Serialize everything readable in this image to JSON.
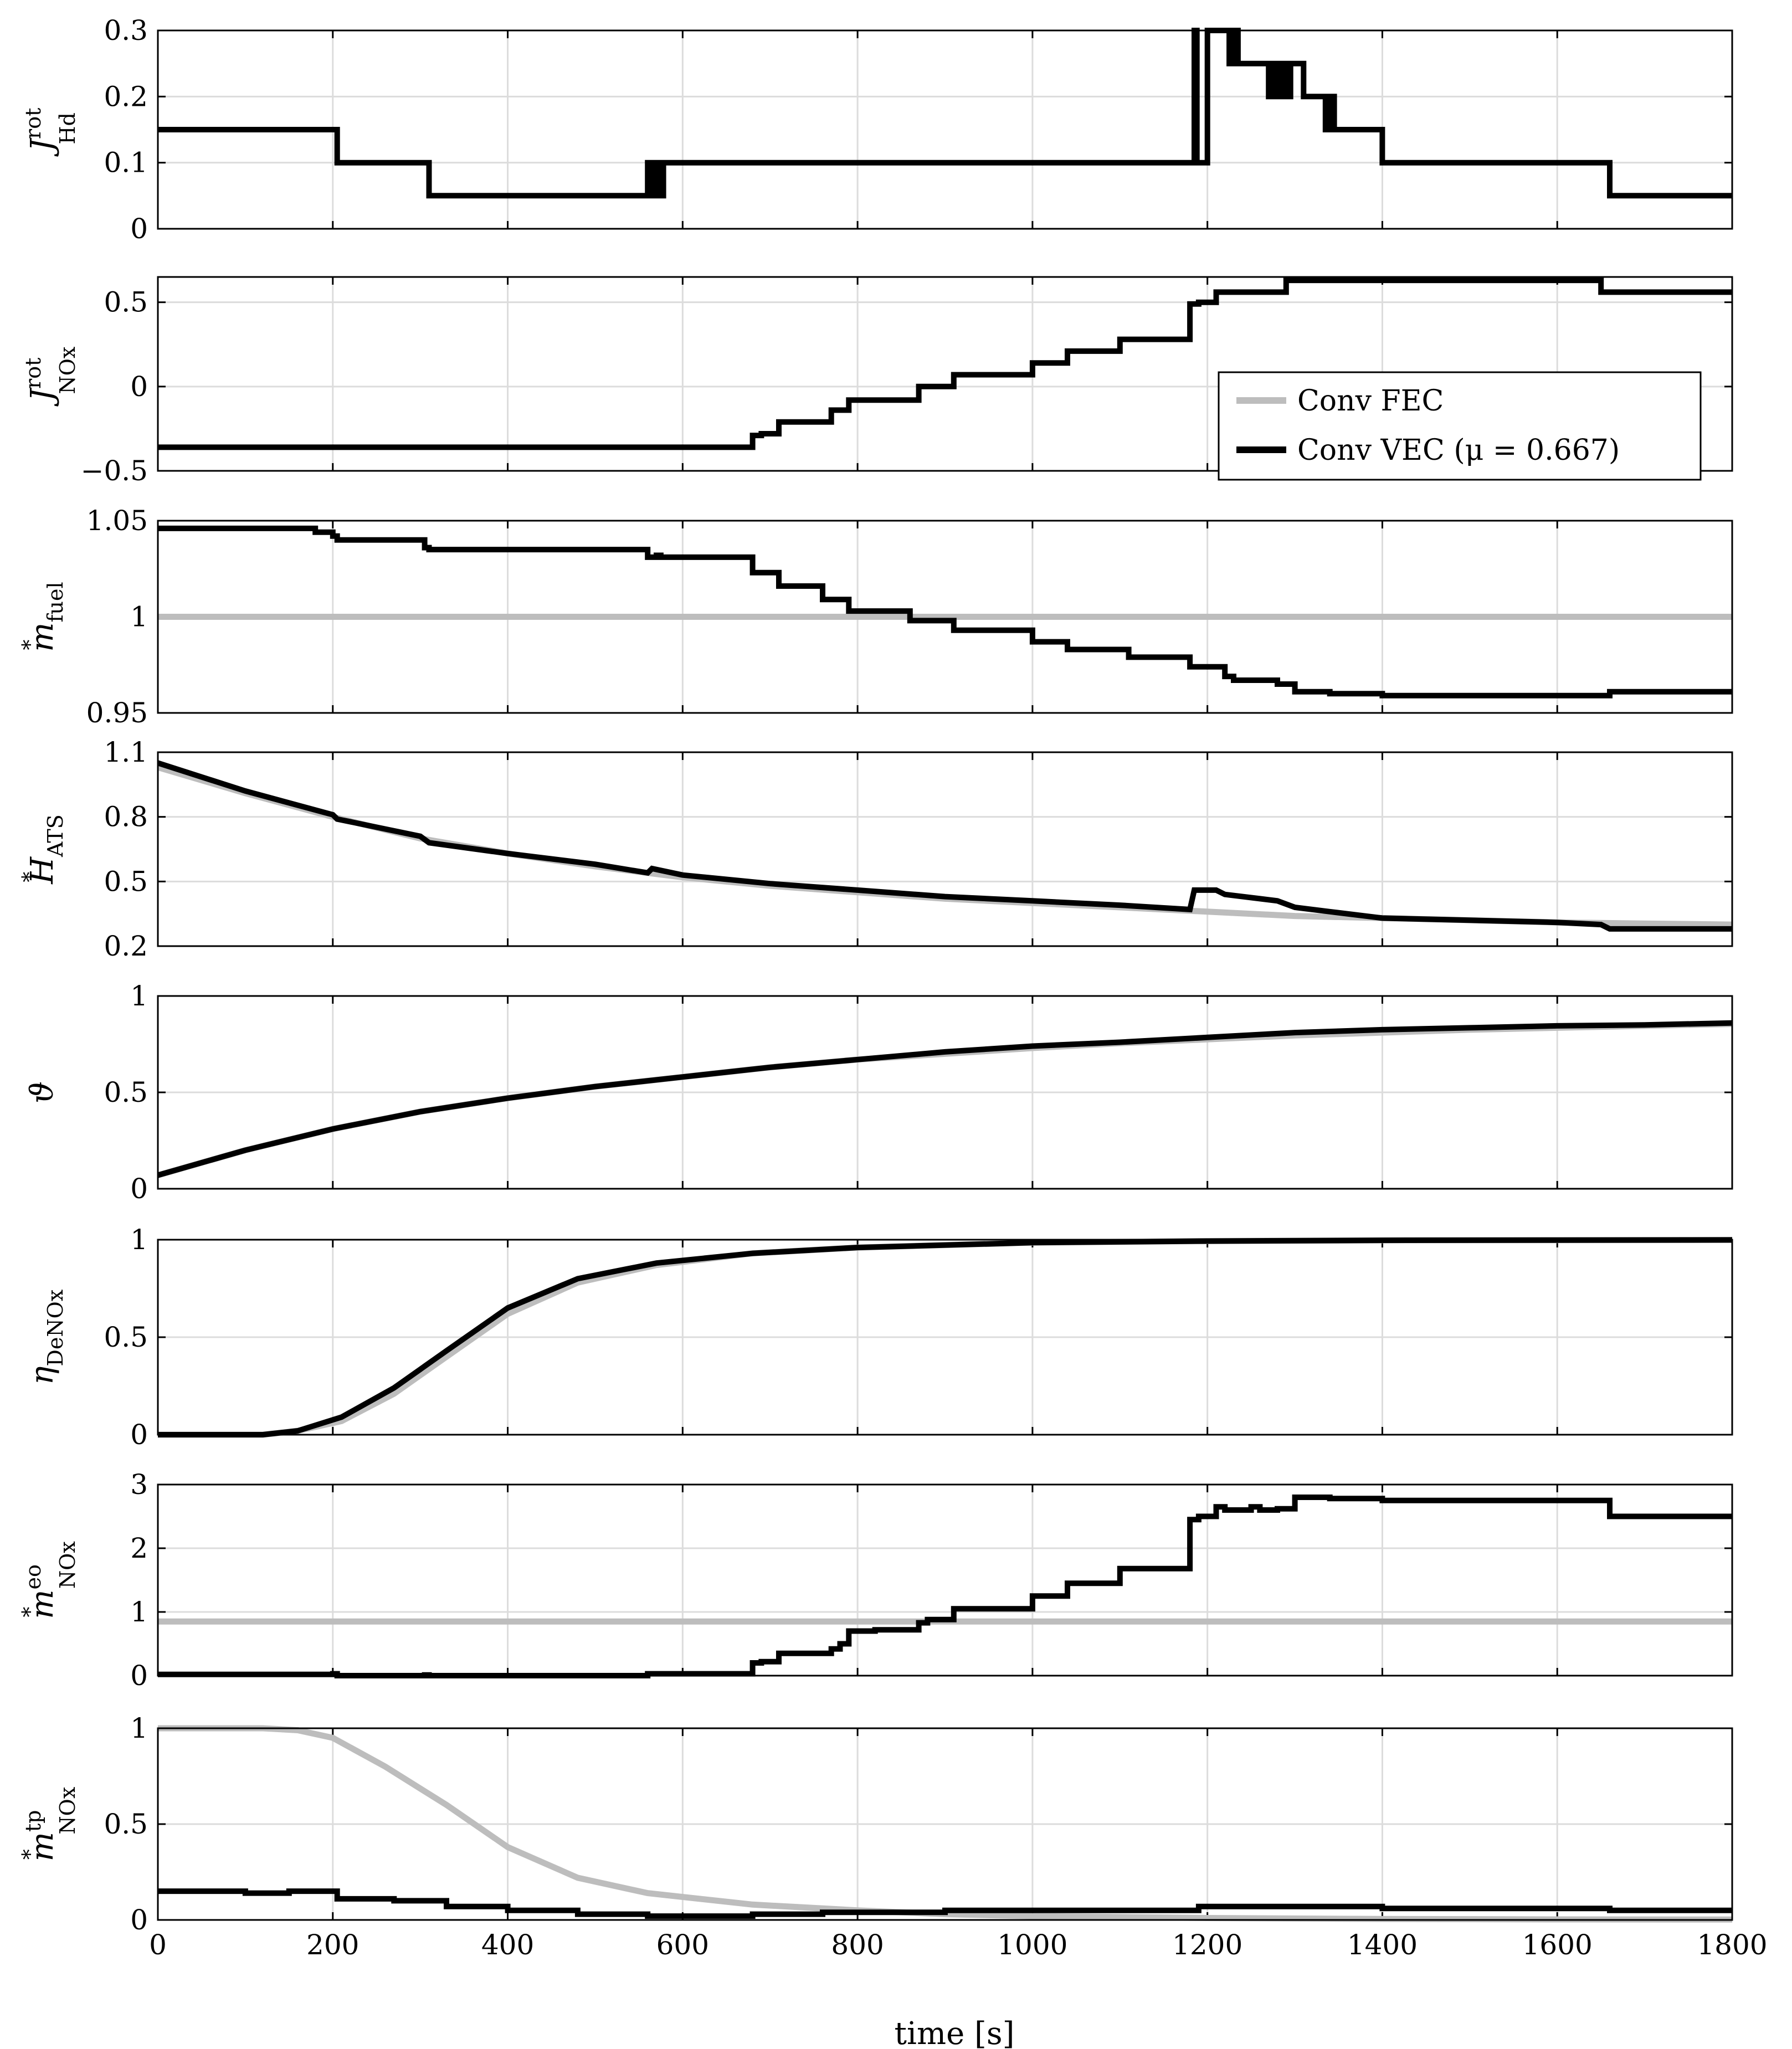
{
  "chart_data": {
    "type": "line",
    "xlabel": "time [s]",
    "xlim": [
      0,
      1800
    ],
    "xticks": [
      "0",
      "200",
      "400",
      "600",
      "800",
      "1000",
      "1200",
      "1400",
      "1600",
      "1800"
    ],
    "grid": true,
    "legend": {
      "placement": "inside-right of panel 6",
      "entries": [
        {
          "label": "Conv FEC",
          "color": "#bdbdbd"
        },
        {
          "label": "Conv VEC (μ = 0.667)",
          "color": "#000000"
        }
      ]
    },
    "panels": [
      {
        "ylabel": {
          "pre": "",
          "base": "J",
          "sup": "rot",
          "sub": "Hd"
        },
        "ylim": [
          0,
          0.3
        ],
        "yticks": [
          {
            "v": 0,
            "t": "0"
          },
          {
            "v": 0.1,
            "t": "0.1"
          },
          {
            "v": 0.2,
            "t": "0.2"
          },
          {
            "v": 0.3,
            "t": "0.3"
          }
        ],
        "series": [
          {
            "color": "#000000",
            "step": true,
            "x": [
              0,
              200,
              205,
              305,
              310,
              555,
              560,
              562,
              565,
              568,
              572,
              575,
              578,
              1180,
              1185,
              1188,
              1200,
              1215,
              1220,
              1225,
              1230,
              1235,
              1250,
              1270,
              1275,
              1280,
              1285,
              1290,
              1295,
              1300,
              1310,
              1320,
              1335,
              1340,
              1345,
              1390,
              1400,
              1650,
              1660,
              1800
            ],
            "y": [
              0.15,
              0.15,
              0.1,
              0.1,
              0.05,
              0.05,
              0.1,
              0.05,
              0.1,
              0.05,
              0.1,
              0.05,
              0.1,
              0.1,
              0.3,
              0.1,
              0.3,
              0.3,
              0.3,
              0.25,
              0.3,
              0.25,
              0.25,
              0.2,
              0.25,
              0.2,
              0.25,
              0.2,
              0.25,
              0.25,
              0.2,
              0.2,
              0.15,
              0.2,
              0.15,
              0.15,
              0.1,
              0.1,
              0.05,
              0.05
            ]
          }
        ]
      },
      {
        "ylabel": {
          "pre": "",
          "base": "J",
          "sup": "rot",
          "sub": "NOx"
        },
        "ylim": [
          -0.5,
          0.65
        ],
        "yticks": [
          {
            "v": -0.5,
            "t": "−0.5"
          },
          {
            "v": 0,
            "t": "0"
          },
          {
            "v": 0.5,
            "t": "0.5"
          }
        ],
        "series": [
          {
            "color": "#000000",
            "step": true,
            "x": [
              0,
              680,
              690,
              710,
              770,
              780,
              790,
              820,
              870,
              880,
              910,
              1000,
              1040,
              1100,
              1180,
              1190,
              1210,
              1290,
              1300,
              1650,
              1660,
              1800
            ],
            "y": [
              -0.36,
              -0.29,
              -0.28,
              -0.21,
              -0.14,
              -0.14,
              -0.08,
              -0.08,
              0,
              0,
              0.07,
              0.14,
              0.21,
              0.28,
              0.49,
              0.5,
              0.56,
              0.63,
              0.63,
              0.56,
              0.56,
              0.56
            ]
          }
        ]
      },
      {
        "ylabel": {
          "pre": "*",
          "base": "m",
          "sup": "",
          "sub": "fuel"
        },
        "ylim": [
          0.95,
          1.05
        ],
        "yticks": [
          {
            "v": 0.95,
            "t": "0.95"
          },
          {
            "v": 1,
            "t": "1"
          },
          {
            "v": 1.05,
            "t": "1.05"
          }
        ],
        "series": [
          {
            "color": "#bdbdbd",
            "step": false,
            "x": [
              0,
              1800
            ],
            "y": [
              1,
              1
            ]
          },
          {
            "color": "#000000",
            "step": true,
            "x": [
              0,
              120,
              180,
              200,
              205,
              305,
              310,
              560,
              570,
              575,
              680,
              710,
              760,
              790,
              860,
              910,
              1000,
              1040,
              1110,
              1180,
              1220,
              1230,
              1280,
              1300,
              1340,
              1400,
              1650,
              1660,
              1800
            ],
            "y": [
              1.046,
              1.046,
              1.044,
              1.042,
              1.04,
              1.036,
              1.035,
              1.031,
              1.032,
              1.031,
              1.023,
              1.016,
              1.009,
              1.003,
              0.998,
              0.993,
              0.987,
              0.983,
              0.979,
              0.974,
              0.969,
              0.967,
              0.965,
              0.961,
              0.96,
              0.959,
              0.959,
              0.961,
              0.961
            ]
          }
        ]
      },
      {
        "ylabel": {
          "pre": "*",
          "base": "H",
          "sup": "",
          "sub": "ATS"
        },
        "ylim": [
          0.2,
          1.1
        ],
        "yticks": [
          {
            "v": 0.2,
            "t": "0.2"
          },
          {
            "v": 0.5,
            "t": "0.5"
          },
          {
            "v": 0.8,
            "t": "0.8"
          },
          {
            "v": 1.1,
            "t": "1.1"
          }
        ],
        "series": [
          {
            "color": "#bdbdbd",
            "step": false,
            "x": [
              0,
              100,
              200,
              300,
              400,
              500,
              600,
              700,
              800,
              900,
              1000,
              1100,
              1200,
              1300,
              1400,
              1500,
              1600,
              1700,
              1800
            ],
            "y": [
              1.03,
              0.91,
              0.8,
              0.7,
              0.63,
              0.57,
              0.52,
              0.48,
              0.45,
              0.42,
              0.4,
              0.38,
              0.36,
              0.34,
              0.33,
              0.32,
              0.31,
              0.305,
              0.3
            ]
          },
          {
            "color": "#000000",
            "step": false,
            "x": [
              0,
              100,
              200,
              205,
              300,
              310,
              400,
              500,
              560,
              565,
              600,
              700,
              800,
              900,
              1000,
              1100,
              1180,
              1185,
              1210,
              1220,
              1260,
              1280,
              1300,
              1340,
              1400,
              1500,
              1600,
              1650,
              1660,
              1800
            ],
            "y": [
              1.05,
              0.92,
              0.81,
              0.79,
              0.71,
              0.68,
              0.63,
              0.58,
              0.54,
              0.56,
              0.53,
              0.49,
              0.46,
              0.43,
              0.41,
              0.39,
              0.37,
              0.46,
              0.46,
              0.44,
              0.42,
              0.41,
              0.38,
              0.36,
              0.33,
              0.32,
              0.31,
              0.3,
              0.28,
              0.28
            ]
          }
        ]
      },
      {
        "ylabel": {
          "pre": "",
          "base": "ϑ",
          "sup": "",
          "sub": ""
        },
        "ylim": [
          0,
          1
        ],
        "yticks": [
          {
            "v": 0,
            "t": "0"
          },
          {
            "v": 0.5,
            "t": "0.5"
          },
          {
            "v": 1,
            "t": "1"
          }
        ],
        "series": [
          {
            "color": "#bdbdbd",
            "step": false,
            "x": [
              0,
              100,
              200,
              300,
              400,
              500,
              600,
              700,
              800,
              900,
              1000,
              1100,
              1200,
              1300,
              1400,
              1500,
              1600,
              1700,
              1800
            ],
            "y": [
              0.07,
              0.2,
              0.31,
              0.4,
              0.47,
              0.53,
              0.58,
              0.63,
              0.67,
              0.7,
              0.73,
              0.755,
              0.775,
              0.795,
              0.81,
              0.825,
              0.835,
              0.845,
              0.855
            ]
          },
          {
            "color": "#000000",
            "step": false,
            "x": [
              0,
              100,
              200,
              300,
              400,
              500,
              600,
              700,
              800,
              900,
              1000,
              1100,
              1200,
              1300,
              1400,
              1500,
              1600,
              1700,
              1800
            ],
            "y": [
              0.07,
              0.2,
              0.31,
              0.4,
              0.47,
              0.53,
              0.58,
              0.63,
              0.67,
              0.71,
              0.74,
              0.76,
              0.785,
              0.81,
              0.825,
              0.835,
              0.845,
              0.85,
              0.86
            ]
          }
        ]
      },
      {
        "ylabel": {
          "pre": "",
          "base": "η",
          "sup": "",
          "sub": "DeNOx"
        },
        "ylim": [
          0,
          1
        ],
        "yticks": [
          {
            "v": 0,
            "t": "0"
          },
          {
            "v": 0.5,
            "t": "0.5"
          },
          {
            "v": 1,
            "t": "1"
          }
        ],
        "series": [
          {
            "color": "#bdbdbd",
            "step": false,
            "x": [
              0,
              120,
              160,
              210,
              270,
              330,
              400,
              480,
              570,
              680,
              800,
              1000,
              1200,
              1400,
              1600,
              1800
            ],
            "y": [
              0,
              0,
              0.02,
              0.07,
              0.21,
              0.4,
              0.62,
              0.78,
              0.87,
              0.93,
              0.96,
              0.985,
              0.993,
              0.997,
              0.998,
              0.999
            ]
          },
          {
            "color": "#000000",
            "step": false,
            "x": [
              0,
              120,
              160,
              210,
              270,
              330,
              400,
              480,
              570,
              680,
              800,
              1000,
              1200,
              1400,
              1600,
              1800
            ],
            "y": [
              0,
              0,
              0.02,
              0.09,
              0.24,
              0.43,
              0.65,
              0.8,
              0.88,
              0.93,
              0.96,
              0.985,
              0.993,
              0.997,
              0.998,
              0.999
            ]
          }
        ]
      },
      {
        "ylabel": {
          "pre": "*",
          "base": "m",
          "sup": "eo",
          "sub": "NOx"
        },
        "ylim": [
          0,
          3
        ],
        "yticks": [
          {
            "v": 0,
            "t": "0"
          },
          {
            "v": 1,
            "t": "1"
          },
          {
            "v": 2,
            "t": "2"
          },
          {
            "v": 3,
            "t": "3"
          }
        ],
        "series": [
          {
            "color": "#bdbdbd",
            "step": false,
            "x": [
              0,
              1800
            ],
            "y": [
              0.85,
              0.85
            ]
          },
          {
            "color": "#000000",
            "step": true,
            "x": [
              0,
              200,
              205,
              305,
              310,
              560,
              680,
              690,
              710,
              770,
              780,
              790,
              820,
              870,
              880,
              910,
              1000,
              1040,
              1100,
              1180,
              1190,
              1210,
              1220,
              1250,
              1260,
              1280,
              1300,
              1340,
              1400,
              1650,
              1660,
              1800
            ],
            "y": [
              0.02,
              0.03,
              0,
              0.01,
              0,
              0.03,
              0.2,
              0.22,
              0.35,
              0.42,
              0.5,
              0.7,
              0.72,
              0.83,
              0.88,
              1.05,
              1.25,
              1.45,
              1.68,
              2.45,
              2.5,
              2.65,
              2.6,
              2.65,
              2.6,
              2.62,
              2.8,
              2.78,
              2.75,
              2.75,
              2.5,
              2.5
            ]
          }
        ]
      },
      {
        "ylabel": {
          "pre": "*",
          "base": "m",
          "sup": "tp",
          "sub": "NOx"
        },
        "ylim": [
          0,
          1
        ],
        "yticks": [
          {
            "v": 0,
            "t": "0"
          },
          {
            "v": 0.5,
            "t": "0.5"
          },
          {
            "v": 1,
            "t": "1"
          }
        ],
        "series": [
          {
            "color": "#bdbdbd",
            "step": false,
            "x": [
              0,
              120,
              160,
              200,
              260,
              330,
              400,
              480,
              560,
              680,
              800,
              900,
              1000,
              1200,
              1400,
              1600,
              1800
            ],
            "y": [
              1,
              1,
              0.99,
              0.95,
              0.8,
              0.6,
              0.38,
              0.22,
              0.14,
              0.08,
              0.05,
              0.03,
              0.02,
              0.01,
              0.005,
              0.003,
              0.002
            ]
          },
          {
            "color": "#000000",
            "step": true,
            "x": [
              0,
              100,
              150,
              200,
              205,
              270,
              330,
              400,
              480,
              560,
              620,
              680,
              760,
              800,
              900,
              1000,
              1100,
              1180,
              1190,
              1300,
              1400,
              1500,
              1650,
              1660,
              1800
            ],
            "y": [
              0.15,
              0.14,
              0.15,
              0.15,
              0.11,
              0.1,
              0.07,
              0.05,
              0.03,
              0.02,
              0.02,
              0.03,
              0.04,
              0.04,
              0.05,
              0.05,
              0.05,
              0.05,
              0.07,
              0.07,
              0.06,
              0.06,
              0.06,
              0.05,
              0.05
            ]
          }
        ]
      }
    ]
  }
}
